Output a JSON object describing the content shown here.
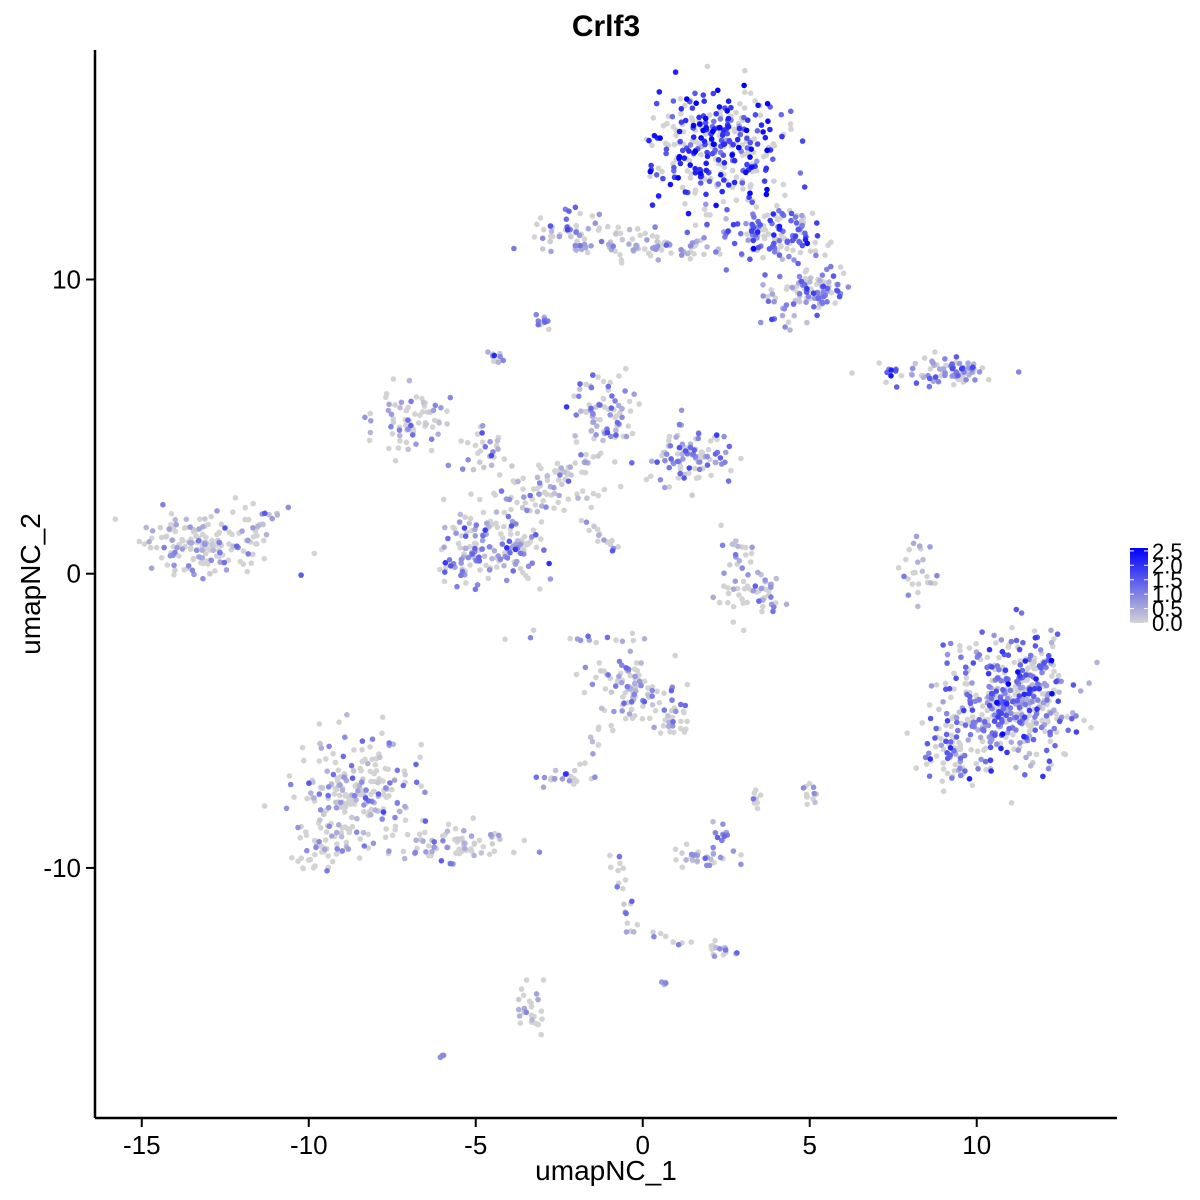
{
  "chart_data": {
    "type": "scatter",
    "title": "Crlf3",
    "xlabel": "umapNC_1",
    "ylabel": "umapNC_2",
    "xlim": [
      -16.4,
      14.2
    ],
    "ylim": [
      -18.5,
      17.8
    ],
    "xticks": [
      {
        "value": -15,
        "label": "-15"
      },
      {
        "value": -10,
        "label": "-10"
      },
      {
        "value": -5,
        "label": "-5"
      },
      {
        "value": 0,
        "label": "0"
      },
      {
        "value": 5,
        "label": "5"
      },
      {
        "value": 10,
        "label": "10"
      }
    ],
    "yticks": [
      {
        "value": -10,
        "label": "-10"
      },
      {
        "value": 0,
        "label": "0"
      },
      {
        "value": 10,
        "label": "10"
      }
    ],
    "grid": false,
    "legend": {
      "placement": "right",
      "type": "colorbar",
      "low_color": "#d3d3d3",
      "high_color": "#0000ff",
      "min": 0.0,
      "max": 2.6,
      "labels": [
        {
          "value": 0.0,
          "label": "0.0"
        },
        {
          "value": 0.5,
          "label": "0.5"
        },
        {
          "value": 1.0,
          "label": "1.0"
        },
        {
          "value": 1.5,
          "label": "1.5"
        },
        {
          "value": 2.0,
          "label": "2.0"
        },
        {
          "value": 2.5,
          "label": "2.5"
        }
      ]
    },
    "clusters": [
      {
        "cx": 2.2,
        "cy": 14.5,
        "sx": 0.9,
        "sy": 1.0,
        "n": 340,
        "expr": 1.9
      },
      {
        "cx": 4.0,
        "cy": 11.5,
        "sx": 0.8,
        "sy": 0.5,
        "n": 130,
        "expr": 1.2
      },
      {
        "cx": 5.3,
        "cy": 9.8,
        "sx": 0.4,
        "sy": 0.4,
        "n": 70,
        "expr": 1.0
      },
      {
        "cx": 4.4,
        "cy": 9.3,
        "sx": 0.5,
        "sy": 0.4,
        "n": 40,
        "expr": 0.7
      },
      {
        "cx": 0.5,
        "cy": 11.2,
        "sx": 1.1,
        "sy": 0.25,
        "n": 60,
        "expr": 0.5
      },
      {
        "cx": -2.2,
        "cy": 11.6,
        "sx": 0.5,
        "sy": 0.35,
        "n": 55,
        "expr": 0.7
      },
      {
        "cx": 8.4,
        "cy": 6.9,
        "sx": 0.8,
        "sy": 0.2,
        "n": 40,
        "expr": 0.9
      },
      {
        "cx": 9.5,
        "cy": 6.9,
        "sx": 0.4,
        "sy": 0.25,
        "n": 45,
        "expr": 1.0
      },
      {
        "cx": -3.0,
        "cy": 8.6,
        "sx": 0.15,
        "sy": 0.12,
        "n": 12,
        "expr": 0.7
      },
      {
        "cx": -4.4,
        "cy": 7.3,
        "sx": 0.15,
        "sy": 0.15,
        "n": 10,
        "expr": 0.5
      },
      {
        "cx": -7.0,
        "cy": 5.3,
        "sx": 0.6,
        "sy": 0.5,
        "n": 70,
        "expr": 0.4
      },
      {
        "cx": -1.2,
        "cy": 5.5,
        "sx": 0.5,
        "sy": 0.7,
        "n": 80,
        "expr": 0.6
      },
      {
        "cx": 1.5,
        "cy": 4.0,
        "sx": 0.7,
        "sy": 0.5,
        "n": 100,
        "expr": 0.9
      },
      {
        "cx": -3.0,
        "cy": 3.1,
        "sx": 1.1,
        "sy": 0.5,
        "n": 60,
        "expr": 0.3
      },
      {
        "cx": -4.6,
        "cy": 4.2,
        "sx": 0.5,
        "sy": 0.5,
        "n": 30,
        "expr": 0.5
      },
      {
        "cx": -5.2,
        "cy": 0.8,
        "sx": 0.5,
        "sy": 0.6,
        "n": 80,
        "expr": 0.7
      },
      {
        "cx": -3.8,
        "cy": 0.8,
        "sx": 0.5,
        "sy": 0.6,
        "n": 80,
        "expr": 0.7
      },
      {
        "cx": -13.2,
        "cy": 1.0,
        "sx": 0.9,
        "sy": 0.5,
        "n": 160,
        "expr": 0.5
      },
      {
        "cx": -11.6,
        "cy": 1.8,
        "sx": 0.4,
        "sy": 0.4,
        "n": 20,
        "expr": 0.4
      },
      {
        "cx": 3.3,
        "cy": -0.7,
        "sx": 0.5,
        "sy": 0.4,
        "n": 50,
        "expr": 0.5
      },
      {
        "cx": 3.0,
        "cy": 0.6,
        "sx": 0.3,
        "sy": 0.5,
        "n": 20,
        "expr": 0.6
      },
      {
        "cx": 8.2,
        "cy": 0.2,
        "sx": 0.25,
        "sy": 0.6,
        "n": 25,
        "expr": 0.5
      },
      {
        "cx": 11.0,
        "cy": -4.3,
        "sx": 1.0,
        "sy": 1.1,
        "n": 480,
        "expr": 1.2
      },
      {
        "cx": 9.4,
        "cy": -6.2,
        "sx": 0.6,
        "sy": 0.5,
        "n": 60,
        "expr": 0.9
      },
      {
        "cx": -0.5,
        "cy": -3.8,
        "sx": 0.5,
        "sy": 0.5,
        "n": 90,
        "expr": 0.6
      },
      {
        "cx": 0.8,
        "cy": -4.8,
        "sx": 0.4,
        "sy": 0.4,
        "n": 25,
        "expr": 0.5
      },
      {
        "cx": -2.4,
        "cy": -6.9,
        "sx": 0.3,
        "sy": 0.15,
        "n": 20,
        "expr": 0.5
      },
      {
        "cx": -8.6,
        "cy": -7.6,
        "sx": 0.9,
        "sy": 1.0,
        "n": 220,
        "expr": 0.4
      },
      {
        "cx": -9.6,
        "cy": -9.2,
        "sx": 0.4,
        "sy": 0.4,
        "n": 40,
        "expr": 0.3
      },
      {
        "cx": -5.6,
        "cy": -9.2,
        "sx": 0.9,
        "sy": 0.35,
        "n": 70,
        "expr": 0.3
      },
      {
        "cx": 1.9,
        "cy": -9.6,
        "sx": 0.5,
        "sy": 0.2,
        "n": 30,
        "expr": 0.6
      },
      {
        "cx": 2.4,
        "cy": -8.8,
        "sx": 0.2,
        "sy": 0.2,
        "n": 10,
        "expr": 0.5
      },
      {
        "cx": 5.0,
        "cy": -7.4,
        "sx": 0.15,
        "sy": 0.2,
        "n": 12,
        "expr": 0.4
      },
      {
        "cx": 3.3,
        "cy": -7.7,
        "sx": 0.15,
        "sy": 0.15,
        "n": 8,
        "expr": 0.3
      },
      {
        "cx": 2.4,
        "cy": -12.8,
        "sx": 0.2,
        "sy": 0.15,
        "n": 12,
        "expr": 0.4
      },
      {
        "cx": -3.3,
        "cy": -14.7,
        "sx": 0.2,
        "sy": 0.4,
        "n": 25,
        "expr": 0.3
      },
      {
        "cx": -6.0,
        "cy": -16.4,
        "sx": 0.08,
        "sy": 0.06,
        "n": 5,
        "expr": 0.8
      },
      {
        "cx": 0.6,
        "cy": -13.9,
        "sx": 0.06,
        "sy": 0.05,
        "n": 4,
        "expr": 0.6
      },
      {
        "cx": -1.2,
        "cy": -2.2,
        "sx": 1.0,
        "sy": 0.15,
        "n": 15,
        "expr": 0.5
      }
    ],
    "trails": [
      {
        "x0": -1.5,
        "y0": 4.0,
        "x1": -5.0,
        "y1": 1.5,
        "n": 35,
        "w": 0.2,
        "expr": 0.4
      },
      {
        "x0": -1.8,
        "y0": 1.8,
        "x1": -0.8,
        "y1": 0.8,
        "n": 15,
        "w": 0.08,
        "expr": 0.6
      },
      {
        "x0": -0.2,
        "y0": -5.0,
        "x1": 1.3,
        "y1": -5.3,
        "n": 12,
        "w": 0.15,
        "expr": 0.3
      },
      {
        "x0": -1.2,
        "y0": -5.2,
        "x1": -1.9,
        "y1": -6.8,
        "n": 10,
        "w": 0.1,
        "expr": 0.3
      },
      {
        "x0": -0.8,
        "y0": -9.4,
        "x1": -0.3,
        "y1": -12.3,
        "n": 20,
        "w": 0.12,
        "expr": 0.3
      },
      {
        "x0": 0.1,
        "y0": -12.2,
        "x1": 2.4,
        "y1": -12.8,
        "n": 12,
        "w": 0.1,
        "expr": 0.3
      },
      {
        "x0": -2.2,
        "y0": 11.1,
        "x1": 1.8,
        "y1": 11.0,
        "n": 20,
        "w": 0.15,
        "expr": 0.4
      }
    ]
  }
}
